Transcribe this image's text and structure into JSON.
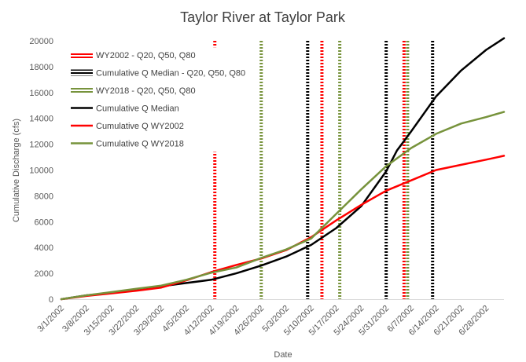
{
  "chart_data": {
    "type": "line",
    "title": "Taylor River at Taylor Park",
    "xlabel": "Date",
    "ylabel": "Cumulative Discharge (cfs)",
    "ylim": [
      0,
      20000
    ],
    "y_ticks": [
      0,
      2000,
      4000,
      6000,
      8000,
      10000,
      12000,
      14000,
      16000,
      18000,
      20000
    ],
    "y_tick_labels": [
      "0",
      "2000",
      "4000",
      "6000",
      "8000",
      "10000",
      "12000",
      "14000",
      "16000",
      "18000",
      "20000"
    ],
    "x_ticks": [
      "3/1/2002",
      "3/8/2002",
      "3/15/2002",
      "3/22/2002",
      "3/29/2002",
      "4/5/2002",
      "4/12/2002",
      "4/19/2002",
      "4/26/2002",
      "5/3/2002",
      "5/10/2002",
      "5/17/2002",
      "5/24/2002",
      "5/31/2002",
      "6/7/2002",
      "6/14/2002",
      "6/21/2002",
      "6/28/2002"
    ],
    "xlim": [
      "3/1/2002",
      "7/3/2002"
    ],
    "grid": false,
    "legend_position": "top-left",
    "legend": [
      "WY2002 - Q20, Q50, Q80",
      "Cumulative Q Median - Q20, Q50, Q80",
      "WY2018 - Q20, Q50, Q80",
      "Cumulative Q Median",
      "Cumulative Q WY2002",
      "Cumulative Q WY2018"
    ],
    "vertical_lines": [
      {
        "name": "WY2002 - Q20, Q50, Q80",
        "color": "#ff0000",
        "dates": [
          "4/13/2002",
          "5/13/2002",
          "6/5/2002"
        ]
      },
      {
        "name": "Cumulative Q Median - Q20, Q50, Q80",
        "color": "#000000",
        "dates": [
          "5/9/2002",
          "5/31/2002",
          "6/13/2002"
        ]
      },
      {
        "name": "WY2018 - Q20, Q50, Q80",
        "color": "#77933c",
        "dates": [
          "4/26/2002",
          "5/18/2002",
          "6/6/2002"
        ]
      }
    ],
    "series": [
      {
        "name": "Cumulative Q Median",
        "color": "#000000",
        "x": [
          "3/1/2002",
          "3/8/2002",
          "3/15/2002",
          "3/22/2002",
          "3/29/2002",
          "4/5/2002",
          "4/12/2002",
          "4/19/2002",
          "4/26/2002",
          "5/3/2002",
          "5/10/2002",
          "5/17/2002",
          "5/24/2002",
          "5/31/2002",
          "6/3/2002",
          "6/7/2002",
          "6/14/2002",
          "6/21/2002",
          "6/28/2002",
          "7/3/2002"
        ],
        "values": [
          0,
          300,
          500,
          750,
          1000,
          1250,
          1500,
          2000,
          2600,
          3300,
          4200,
          5500,
          7200,
          9900,
          11500,
          13000,
          15700,
          17700,
          19300,
          20200
        ]
      },
      {
        "name": "Cumulative Q WY2002",
        "color": "#ff0000",
        "x": [
          "3/1/2002",
          "3/8/2002",
          "3/15/2002",
          "3/22/2002",
          "3/29/2002",
          "4/5/2002",
          "4/12/2002",
          "4/19/2002",
          "4/26/2002",
          "5/3/2002",
          "5/10/2002",
          "5/17/2002",
          "5/24/2002",
          "5/31/2002",
          "6/7/2002",
          "6/14/2002",
          "6/21/2002",
          "6/28/2002",
          "7/3/2002"
        ],
        "values": [
          0,
          250,
          450,
          650,
          900,
          1450,
          2100,
          2650,
          3150,
          3800,
          4800,
          6100,
          7300,
          8400,
          9200,
          10000,
          10400,
          10800,
          11100
        ]
      },
      {
        "name": "Cumulative Q WY2018",
        "color": "#77933c",
        "x": [
          "3/1/2002",
          "3/8/2002",
          "3/15/2002",
          "3/22/2002",
          "3/29/2002",
          "4/5/2002",
          "4/12/2002",
          "4/19/2002",
          "4/26/2002",
          "5/3/2002",
          "5/10/2002",
          "5/17/2002",
          "5/24/2002",
          "5/31/2002",
          "6/7/2002",
          "6/14/2002",
          "6/21/2002",
          "6/28/2002",
          "7/3/2002"
        ],
        "values": [
          0,
          300,
          550,
          800,
          1050,
          1500,
          2050,
          2450,
          3200,
          3850,
          4700,
          6600,
          8500,
          10300,
          11700,
          12800,
          13600,
          14100,
          14500
        ]
      }
    ]
  }
}
